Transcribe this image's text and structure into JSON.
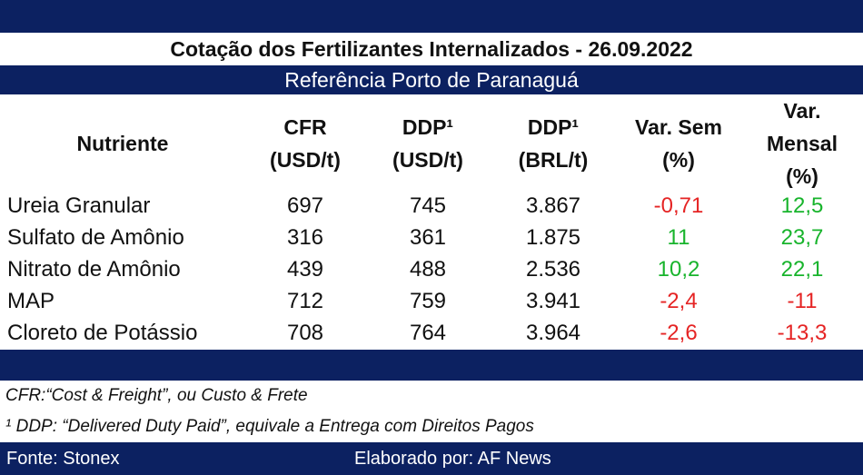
{
  "title": "Cotação dos Fertilizantes Internalizados - 26.09.2022",
  "subtitle": "Referência Porto de Paranaguá",
  "headers": [
    "Nutriente",
    "CFR (USD/t)",
    "DDP¹ (USD/t)",
    "DDP¹ (BRL/t)",
    "Var. Sem (%)",
    "Var. Mensal (%)"
  ],
  "rows": [
    {
      "name": "Ureia Granular",
      "cfr": "697",
      "ddp_usd": "745",
      "ddp_brl": "3.867",
      "var_sem": "-0,71",
      "var_mensal": "12,5"
    },
    {
      "name": "Sulfato de Amônio",
      "cfr": "316",
      "ddp_usd": "361",
      "ddp_brl": "1.875",
      "var_sem": "11",
      "var_mensal": "23,7"
    },
    {
      "name": "Nitrato de Amônio",
      "cfr": "439",
      "ddp_usd": "488",
      "ddp_brl": "2.536",
      "var_sem": "10,2",
      "var_mensal": "22,1"
    },
    {
      "name": "MAP",
      "cfr": "712",
      "ddp_usd": "759",
      "ddp_brl": "3.941",
      "var_sem": "-2,4",
      "var_mensal": "-11"
    },
    {
      "name": "Cloreto de Potássio",
      "cfr": "708",
      "ddp_usd": "764",
      "ddp_brl": "3.964",
      "var_sem": "-2,6",
      "var_mensal": "-13,3"
    }
  ],
  "notes": [
    "CFR:“Cost & Freight”, ou Custo & Frete",
    "¹ DDP: “Delivered Duty Paid”, equivale a Entrega com Direitos Pagos"
  ],
  "footer": {
    "source": "Fonte: Stonex",
    "author": "Elaborado por: AF News"
  },
  "colors": {
    "band": "#0c2161",
    "negative": "#e52424",
    "positive": "#18b42c"
  }
}
